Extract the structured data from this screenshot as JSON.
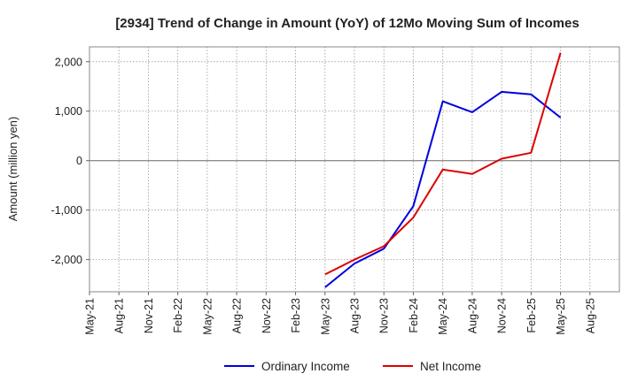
{
  "chart_data": {
    "type": "line",
    "title": "[2934]  Trend of Change in Amount (YoY) of 12Mo Moving Sum of Incomes",
    "ylabel": "Amount (million yen)",
    "xlabel": "",
    "categories": [
      "May-21",
      "Aug-21",
      "Nov-21",
      "Feb-22",
      "May-22",
      "Aug-22",
      "Nov-22",
      "Feb-23",
      "May-23",
      "Aug-23",
      "Nov-23",
      "Feb-24",
      "May-24",
      "Aug-24",
      "Nov-24",
      "Feb-25",
      "May-25",
      "Aug-25"
    ],
    "yticks": [
      2000,
      1000,
      0,
      -1000,
      -2000
    ],
    "ytick_labels": [
      "2,000",
      "1,000",
      "0",
      "-1,000",
      "-2,000"
    ],
    "ylim": [
      -2650,
      2300
    ],
    "grid": true,
    "legend_position": "bottom",
    "series": [
      {
        "name": "Ordinary Income",
        "color": "#0000dd",
        "values": [
          null,
          null,
          null,
          null,
          null,
          null,
          null,
          null,
          -2560,
          -2080,
          -1780,
          -920,
          1200,
          980,
          1390,
          1340,
          870,
          null
        ]
      },
      {
        "name": "Net Income",
        "color": "#dd0000",
        "values": [
          null,
          null,
          null,
          null,
          null,
          null,
          null,
          null,
          -2300,
          -2000,
          -1730,
          -1150,
          -180,
          -270,
          40,
          160,
          2180,
          null
        ]
      }
    ]
  }
}
